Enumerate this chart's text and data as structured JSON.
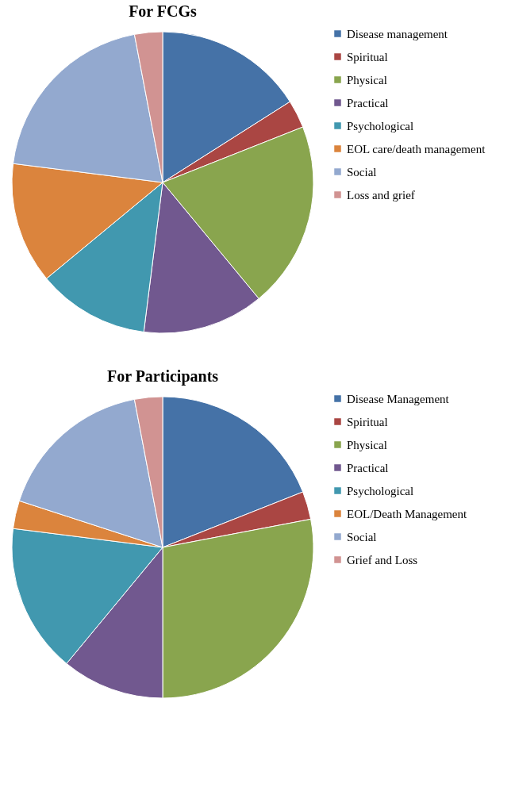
{
  "chart_data": [
    {
      "type": "pie",
      "title": "For FCGs",
      "categories": [
        "Disease management",
        "Spiritual",
        "Physical",
        "Practical",
        "Psychological",
        "EOL care/death management",
        "Social",
        "Loss and grief"
      ],
      "values": [
        16,
        3,
        20,
        13,
        12,
        13,
        20,
        3
      ],
      "colors": [
        "#4572a7",
        "#aa4643",
        "#89a54e",
        "#71588f",
        "#4198af",
        "#db843d",
        "#93a9cf",
        "#d19392"
      ],
      "legend": "right"
    },
    {
      "type": "pie",
      "title": "For Participants",
      "categories": [
        "Disease Management",
        "Spiritual",
        "Physical",
        "Practical",
        "Psychological",
        "EOL/Death Management",
        "Social",
        "Grief and Loss"
      ],
      "values": [
        19,
        3,
        28,
        11,
        16,
        3,
        17,
        3
      ],
      "colors": [
        "#4572a7",
        "#aa4643",
        "#89a54e",
        "#71588f",
        "#4198af",
        "#db843d",
        "#93a9cf",
        "#d19392"
      ],
      "legend": "right"
    }
  ]
}
